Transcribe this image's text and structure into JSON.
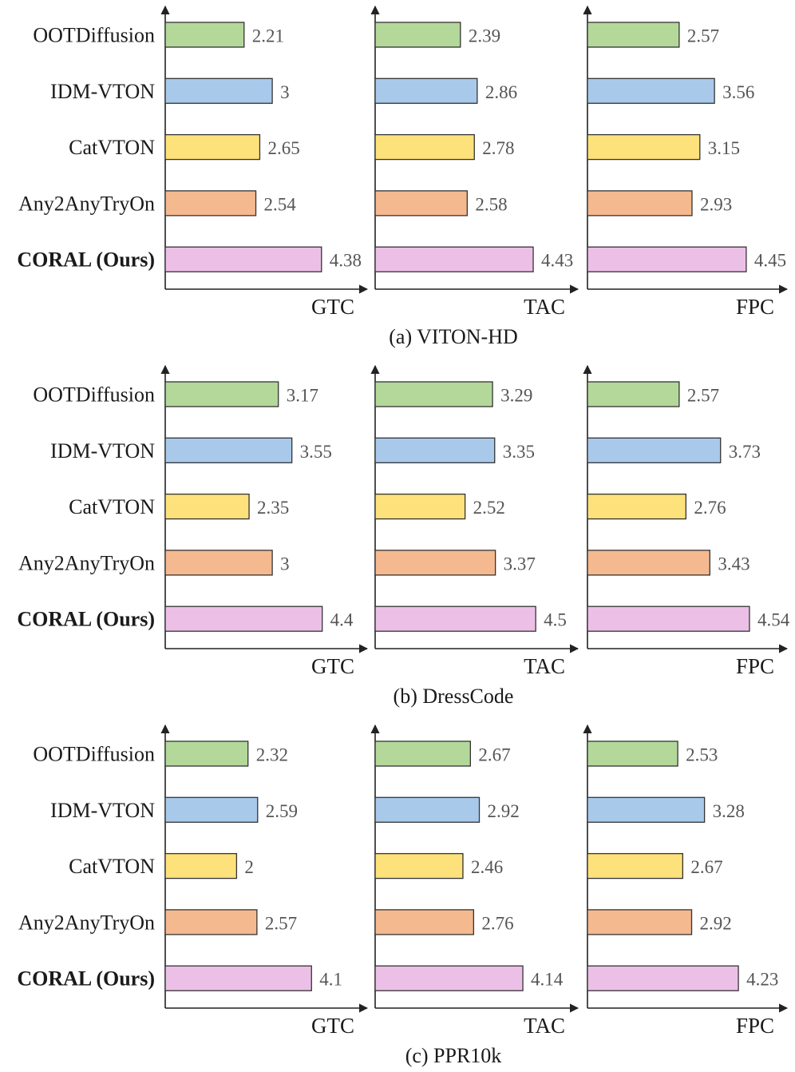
{
  "categories": [
    "OOTDiffusion",
    "IDM-VTON",
    "CatVTON",
    "Any2AnyTryOn",
    "CORAL (Ours)"
  ],
  "colors": [
    "#b3d89a",
    "#a9c9ea",
    "#fde17a",
    "#f5b98f",
    "#ecc0e6"
  ],
  "metrics": [
    "GTC",
    "TAC",
    "FPC"
  ],
  "chart_data": [
    {
      "type": "bar",
      "caption": "(a) VITON-HD",
      "panels": [
        {
          "xlabel": "GTC",
          "values": [
            2.21,
            3,
            2.65,
            2.54,
            4.38
          ],
          "labels": [
            "2.21",
            "3",
            "2.65",
            "2.54",
            "4.38"
          ]
        },
        {
          "xlabel": "TAC",
          "values": [
            2.39,
            2.86,
            2.78,
            2.58,
            4.43
          ],
          "labels": [
            "2.39",
            "2.86",
            "2.78",
            "2.58",
            "4.43"
          ]
        },
        {
          "xlabel": "FPC",
          "values": [
            2.57,
            3.56,
            3.15,
            2.93,
            4.45
          ],
          "labels": [
            "2.57",
            "3.56",
            "3.15",
            "2.93",
            "4.45"
          ]
        }
      ]
    },
    {
      "type": "bar",
      "caption": "(b) DressCode",
      "panels": [
        {
          "xlabel": "GTC",
          "values": [
            3.17,
            3.55,
            2.35,
            3,
            4.4
          ],
          "labels": [
            "3.17",
            "3.55",
            "2.35",
            "3",
            "4.4"
          ]
        },
        {
          "xlabel": "TAC",
          "values": [
            3.29,
            3.35,
            2.52,
            3.37,
            4.5
          ],
          "labels": [
            "3.29",
            "3.35",
            "2.52",
            "3.37",
            "4.5"
          ]
        },
        {
          "xlabel": "FPC",
          "values": [
            2.57,
            3.73,
            2.76,
            3.43,
            4.54
          ],
          "labels": [
            "2.57",
            "3.73",
            "2.76",
            "3.43",
            "4.54"
          ]
        }
      ]
    },
    {
      "type": "bar",
      "caption": "(c) PPR10k",
      "panels": [
        {
          "xlabel": "GTC",
          "values": [
            2.32,
            2.59,
            2,
            2.57,
            4.1
          ],
          "labels": [
            "2.32",
            "2.59",
            "2",
            "2.57",
            "4.1"
          ]
        },
        {
          "xlabel": "TAC",
          "values": [
            2.67,
            2.92,
            2.46,
            2.76,
            4.14
          ],
          "labels": [
            "2.67",
            "2.92",
            "2.46",
            "2.76",
            "4.14"
          ]
        },
        {
          "xlabel": "FPC",
          "values": [
            2.53,
            3.28,
            2.67,
            2.92,
            4.23
          ],
          "labels": [
            "2.53",
            "3.28",
            "2.67",
            "2.92",
            "4.23"
          ]
        }
      ]
    }
  ]
}
